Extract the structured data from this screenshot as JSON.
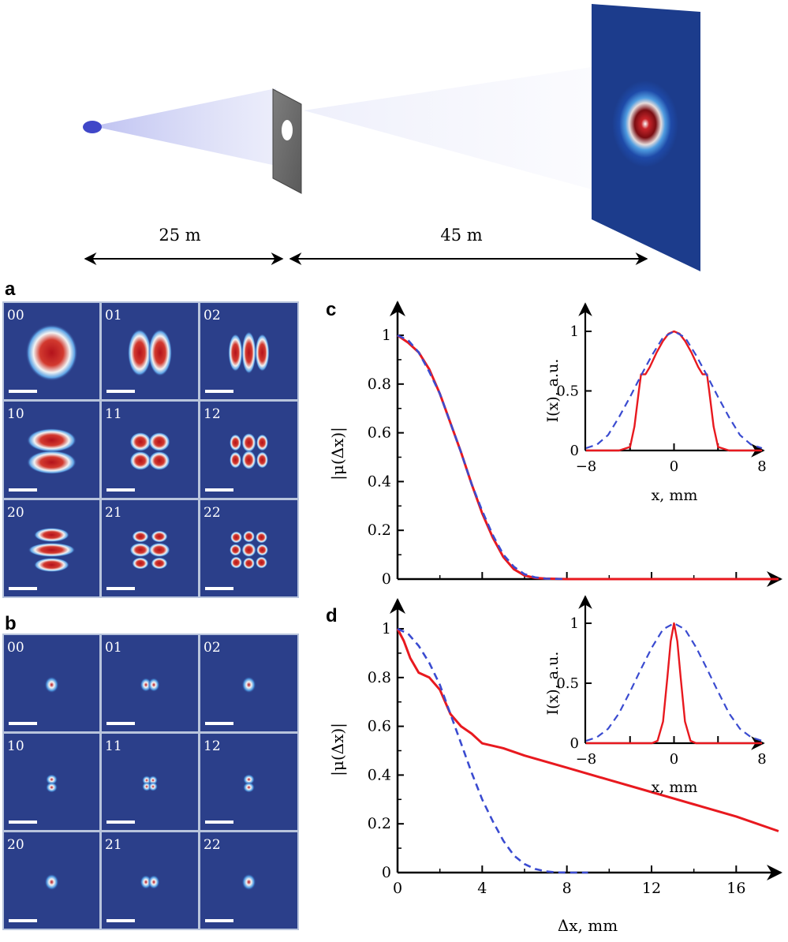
{
  "setup": {
    "distance_source_to_aperture": "25 m",
    "distance_aperture_to_screen": "45 m"
  },
  "panels": {
    "a": {
      "letter": "a",
      "labels": [
        "00",
        "01",
        "02",
        "10",
        "11",
        "12",
        "20",
        "21",
        "22"
      ]
    },
    "b": {
      "letter": "b",
      "labels": [
        "00",
        "01",
        "02",
        "10",
        "11",
        "12",
        "20",
        "21",
        "22"
      ]
    },
    "c": {
      "letter": "c"
    },
    "d": {
      "letter": "d"
    }
  },
  "colors": {
    "tile_bg": "#2b3f8a",
    "grid": "#b8c4dc",
    "red_curve": "#e8191f",
    "blue_curve": "#3a4bd0"
  },
  "chart_data": [
    {
      "id": "c-main",
      "type": "line",
      "ylabel": "|μ(Δx)|",
      "xlabel": "",
      "xlim": [
        0,
        18
      ],
      "ylim": [
        0,
        1
      ],
      "yticks": [
        "0",
        "0.2",
        "0.4",
        "0.6",
        "0.8",
        "1"
      ],
      "series": [
        {
          "style": "solid-red",
          "x": [
            0,
            0.5,
            1,
            1.5,
            2,
            2.5,
            3,
            3.5,
            4,
            4.5,
            5,
            5.5,
            6,
            6.5,
            7,
            8,
            10,
            14,
            18
          ],
          "y": [
            1,
            0.97,
            0.93,
            0.86,
            0.76,
            0.64,
            0.52,
            0.39,
            0.27,
            0.17,
            0.09,
            0.04,
            0.015,
            0.005,
            0.002,
            0,
            0,
            0,
            0
          ]
        },
        {
          "style": "dashed-blue",
          "x": [
            0,
            0.5,
            1,
            1.5,
            2,
            2.5,
            3,
            3.5,
            4,
            4.5,
            5,
            5.5,
            6,
            6.5,
            7,
            8
          ],
          "y": [
            1,
            0.98,
            0.93,
            0.85,
            0.76,
            0.64,
            0.52,
            0.39,
            0.28,
            0.18,
            0.1,
            0.05,
            0.02,
            0.007,
            0.002,
            0
          ]
        }
      ]
    },
    {
      "id": "c-inset",
      "type": "line",
      "ylabel": "I(x), a.u.",
      "xlabel": "x, mm",
      "xlim": [
        -8,
        8
      ],
      "ylim": [
        0,
        1
      ],
      "xticks": [
        "−8",
        "0",
        "8"
      ],
      "yticks": [
        "0",
        "0.5",
        "1"
      ],
      "series": [
        {
          "style": "solid-red",
          "x": [
            -8,
            -5,
            -4,
            -3.6,
            -3.2,
            -3,
            -2.6,
            -2.2,
            -1.6,
            -1,
            -0.5,
            0,
            0.5,
            1,
            1.6,
            2.2,
            2.6,
            3,
            3.2,
            3.6,
            4,
            5,
            8
          ],
          "y": [
            0,
            0,
            0.03,
            0.2,
            0.5,
            0.64,
            0.64,
            0.7,
            0.82,
            0.92,
            0.98,
            1,
            0.98,
            0.92,
            0.82,
            0.7,
            0.64,
            0.64,
            0.5,
            0.2,
            0.03,
            0,
            0
          ]
        },
        {
          "style": "dashed-blue",
          "x": [
            -8,
            -7,
            -6,
            -5,
            -4,
            -3,
            -2,
            -1,
            0,
            1,
            2,
            3,
            4,
            5,
            6,
            7,
            8
          ],
          "y": [
            0.02,
            0.05,
            0.13,
            0.28,
            0.45,
            0.63,
            0.8,
            0.95,
            1,
            0.95,
            0.8,
            0.63,
            0.45,
            0.28,
            0.13,
            0.05,
            0.02
          ]
        }
      ]
    },
    {
      "id": "d-main",
      "type": "line",
      "ylabel": "|μ(Δx)|",
      "xlabel": "Δx, mm",
      "xlim": [
        0,
        18
      ],
      "ylim": [
        0,
        1
      ],
      "xticks": [
        "0",
        "4",
        "8",
        "12",
        "16"
      ],
      "yticks": [
        "0",
        "0.2",
        "0.4",
        "0.6",
        "0.8",
        "1"
      ],
      "series": [
        {
          "style": "solid-red",
          "x": [
            0,
            0.3,
            0.6,
            1,
            1.5,
            2,
            2.5,
            3,
            3.5,
            4,
            5,
            6,
            8,
            10,
            12,
            14,
            16,
            18
          ],
          "y": [
            1,
            0.95,
            0.88,
            0.82,
            0.8,
            0.75,
            0.65,
            0.6,
            0.57,
            0.53,
            0.51,
            0.48,
            0.43,
            0.38,
            0.33,
            0.28,
            0.23,
            0.17
          ]
        },
        {
          "style": "dashed-blue",
          "x": [
            0,
            0.5,
            1,
            1.5,
            2,
            2.5,
            3,
            3.5,
            4,
            4.5,
            5,
            5.5,
            6,
            6.5,
            7,
            7.5,
            8,
            9
          ],
          "y": [
            1,
            0.98,
            0.93,
            0.86,
            0.77,
            0.65,
            0.53,
            0.41,
            0.3,
            0.21,
            0.13,
            0.07,
            0.035,
            0.015,
            0.005,
            0.001,
            0,
            0
          ]
        }
      ]
    },
    {
      "id": "d-inset",
      "type": "line",
      "ylabel": "I(x), a.u.",
      "xlabel": "x, mm",
      "xlim": [
        -8,
        8
      ],
      "ylim": [
        0,
        1
      ],
      "xticks": [
        "−8",
        "0",
        "8"
      ],
      "yticks": [
        "0",
        "0.5",
        "1"
      ],
      "series": [
        {
          "style": "solid-red",
          "x": [
            -8,
            -2,
            -1.5,
            -1,
            -0.6,
            -0.3,
            0,
            0.3,
            0.6,
            1,
            1.5,
            2,
            8
          ],
          "y": [
            0,
            0,
            0.02,
            0.18,
            0.55,
            0.85,
            1,
            0.85,
            0.55,
            0.18,
            0.02,
            0,
            0
          ]
        },
        {
          "style": "dashed-blue",
          "x": [
            -8,
            -7,
            -6,
            -5,
            -4,
            -3,
            -2,
            -1,
            0,
            1,
            2,
            3,
            4,
            5,
            6,
            7,
            8
          ],
          "y": [
            0.02,
            0.05,
            0.12,
            0.25,
            0.43,
            0.62,
            0.8,
            0.95,
            1,
            0.95,
            0.8,
            0.62,
            0.43,
            0.25,
            0.12,
            0.05,
            0.02
          ]
        }
      ]
    }
  ]
}
